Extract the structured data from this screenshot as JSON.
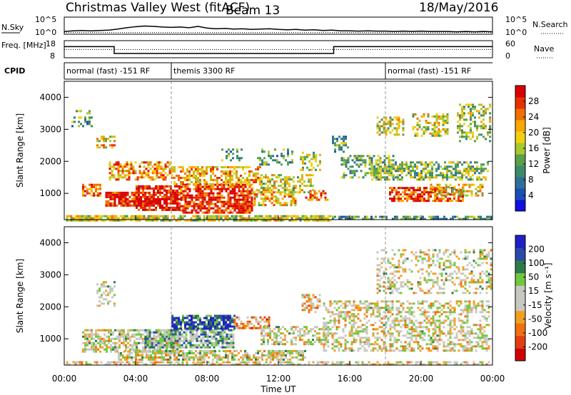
{
  "header": {
    "title": "Christmas Valley West (fitACF)",
    "beam": "Beam 13",
    "date": "18/May/2016"
  },
  "chart_data": [
    {
      "type": "line",
      "panel": "noise",
      "series": [
        {
          "name": "N.Sky",
          "style": "solid",
          "x_hours": [
            0,
            0.5,
            1,
            1.5,
            2,
            2.5,
            3,
            3.5,
            4,
            4.5,
            5,
            5.5,
            6,
            6.5,
            7,
            7.5,
            8,
            8.5,
            9,
            9.5,
            10,
            10.5,
            11,
            11.5,
            12,
            12.5,
            13,
            13.5,
            14,
            14.5,
            15,
            15.5,
            16,
            16.5,
            17,
            17.5,
            18,
            18.5,
            19,
            19.5,
            20,
            20.5,
            21,
            21.5,
            22,
            22.5,
            23,
            23.5,
            24
          ],
          "values": [
            0.8,
            1.0,
            1.1,
            1.0,
            1.1,
            1.2,
            1.5,
            1.9,
            2.2,
            2.4,
            2.3,
            2.1,
            2.0,
            2.1,
            1.9,
            2.3,
            1.8,
            1.6,
            1.7,
            1.5,
            1.6,
            1.4,
            1.5,
            1.6,
            1.4,
            1.3,
            1.4,
            1.2,
            1.3,
            1.1,
            1.2,
            1.0,
            1.0,
            0.9,
            1.0,
            0.9,
            0.9,
            0.8,
            0.9,
            0.8,
            0.9,
            0.8,
            0.8,
            0.8,
            0.7,
            0.8,
            0.7,
            0.8,
            0.7
          ]
        },
        {
          "name": "N.Search",
          "style": "dotted",
          "x_hours": [
            0,
            24
          ],
          "values": [
            0.5,
            0.5
          ]
        }
      ],
      "ylabel_left": "N.Sky",
      "ylabel_right": "N.Search",
      "yticks_left": [
        "10^5",
        "10^0"
      ],
      "yticks_right": [
        "10^5",
        "10^0"
      ],
      "ylim": [
        0,
        5
      ]
    },
    {
      "type": "line",
      "panel": "frequency",
      "series": [
        {
          "name": "Freq",
          "style": "solid",
          "x_hours": [
            0,
            2.8,
            2.8,
            15.1,
            15.1,
            24
          ],
          "values": [
            14.5,
            14.5,
            10.5,
            10.5,
            14.5,
            14.5
          ]
        },
        {
          "name": "Nave",
          "style": "dotted",
          "x_hours": [
            0,
            24
          ],
          "values": [
            12.8,
            12.8
          ]
        }
      ],
      "ylabel_left": "Freq. [MHz]",
      "ylabel_right": "Nave",
      "yticks_left": [
        "18",
        "8"
      ],
      "yticks_right": [
        "60",
        "0"
      ],
      "ylim": [
        8,
        18
      ]
    },
    {
      "type": "table",
      "panel": "cpid",
      "label": "CPID",
      "segments": [
        {
          "text": "normal (fast) -151 RF",
          "start_hour": 0,
          "end_hour": 6
        },
        {
          "text": "themis 3300 RF",
          "start_hour": 6,
          "end_hour": 18
        },
        {
          "text": "normal (fast) -151 RF",
          "start_hour": 18,
          "end_hour": 24
        }
      ]
    },
    {
      "type": "heatmap",
      "panel": "power",
      "ylabel": "Slant Range [km]",
      "ylim": [
        180,
        4500
      ],
      "yticks": [
        1000,
        2000,
        3000,
        4000
      ],
      "xlim": [
        0,
        24
      ],
      "colorbar": {
        "label": "Power [dB]",
        "ticks": [
          4,
          8,
          12,
          16,
          20,
          24,
          28
        ],
        "range": [
          0,
          30
        ]
      },
      "regions": [
        {
          "t0": 0.1,
          "t1": 14.9,
          "r0": 180,
          "r1": 320,
          "level": 0.55,
          "density": 0.8
        },
        {
          "t0": 15.0,
          "t1": 23.9,
          "r0": 180,
          "r1": 300,
          "level": 0.35,
          "density": 0.7
        },
        {
          "t0": 2.3,
          "t1": 4.0,
          "r0": 600,
          "r1": 1050,
          "level": 0.92,
          "density": 0.85
        },
        {
          "t0": 4.0,
          "t1": 6.5,
          "r0": 450,
          "r1": 1250,
          "level": 0.95,
          "density": 0.8
        },
        {
          "t0": 6.5,
          "t1": 10.5,
          "r0": 420,
          "r1": 1300,
          "level": 0.9,
          "density": 0.75
        },
        {
          "t0": 10.5,
          "t1": 13.0,
          "r0": 600,
          "r1": 1200,
          "level": 0.65,
          "density": 0.55
        },
        {
          "t0": 13.5,
          "t1": 14.8,
          "r0": 800,
          "r1": 1100,
          "level": 0.85,
          "density": 0.6
        },
        {
          "t0": 2.5,
          "t1": 6.0,
          "r0": 1400,
          "r1": 2000,
          "level": 0.72,
          "density": 0.55
        },
        {
          "t0": 6.0,
          "t1": 11.0,
          "r0": 1300,
          "r1": 1850,
          "level": 0.68,
          "density": 0.55
        },
        {
          "t0": 11.0,
          "t1": 14.0,
          "r0": 1000,
          "r1": 1600,
          "level": 0.55,
          "density": 0.45
        },
        {
          "t0": 1.0,
          "t1": 2.0,
          "r0": 900,
          "r1": 1300,
          "level": 0.8,
          "density": 0.7
        },
        {
          "t0": 0.4,
          "t1": 1.6,
          "r0": 3100,
          "r1": 3600,
          "level": 0.35,
          "density": 0.45
        },
        {
          "t0": 1.8,
          "t1": 2.8,
          "r0": 2400,
          "r1": 2800,
          "level": 0.62,
          "density": 0.55
        },
        {
          "t0": 13.2,
          "t1": 14.3,
          "r0": 1700,
          "r1": 2300,
          "level": 0.5,
          "density": 0.45
        },
        {
          "t0": 15.5,
          "t1": 18.5,
          "r0": 1500,
          "r1": 2200,
          "level": 0.42,
          "density": 0.5
        },
        {
          "t0": 17.2,
          "t1": 23.8,
          "r0": 1400,
          "r1": 2000,
          "level": 0.45,
          "density": 0.55
        },
        {
          "t0": 18.2,
          "t1": 22.3,
          "r0": 750,
          "r1": 1200,
          "level": 0.85,
          "density": 0.7
        },
        {
          "t0": 20.5,
          "t1": 23.5,
          "r0": 900,
          "r1": 1300,
          "level": 0.6,
          "density": 0.5
        },
        {
          "t0": 17.5,
          "t1": 19.0,
          "r0": 2800,
          "r1": 3400,
          "level": 0.55,
          "density": 0.5
        },
        {
          "t0": 19.5,
          "t1": 21.5,
          "r0": 2800,
          "r1": 3500,
          "level": 0.55,
          "density": 0.45
        },
        {
          "t0": 22.0,
          "t1": 23.9,
          "r0": 2600,
          "r1": 3800,
          "level": 0.5,
          "density": 0.45
        },
        {
          "t0": 10.8,
          "t1": 12.8,
          "r0": 1900,
          "r1": 2400,
          "level": 0.35,
          "density": 0.35
        },
        {
          "t0": 15.0,
          "t1": 16.0,
          "r0": 2300,
          "r1": 2800,
          "level": 0.35,
          "density": 0.35
        },
        {
          "t0": 8.8,
          "t1": 10.0,
          "r0": 2000,
          "r1": 2400,
          "level": 0.35,
          "density": 0.3
        }
      ]
    },
    {
      "type": "heatmap",
      "panel": "velocity",
      "ylabel": "Slant Range [km]",
      "ylim": [
        180,
        4500
      ],
      "yticks": [
        1000,
        2000,
        3000,
        4000
      ],
      "xlim": [
        0,
        24
      ],
      "xticks": [
        "00:00",
        "04:00",
        "08:00",
        "12:00",
        "16:00",
        "20:00",
        "00:00"
      ],
      "xlabel": "Time UT",
      "colorbar": {
        "label": "Velocity [m s⁻¹]",
        "ticks": [
          200,
          100,
          50,
          15,
          -15,
          -50,
          -100,
          -200
        ]
      },
      "regions": [
        {
          "t0": 0.1,
          "t1": 23.9,
          "r0": 180,
          "r1": 300,
          "level": 0.55,
          "density": 0.55
        },
        {
          "t0": 1.0,
          "t1": 6.5,
          "r0": 600,
          "r1": 1300,
          "level": 0.5,
          "density": 0.65
        },
        {
          "t0": 4.5,
          "t1": 9.5,
          "r0": 700,
          "r1": 1300,
          "level": 0.35,
          "density": 0.75
        },
        {
          "t0": 6.0,
          "t1": 9.5,
          "r0": 1300,
          "r1": 1750,
          "level": 0.12,
          "density": 0.8
        },
        {
          "t0": 9.5,
          "t1": 11.5,
          "r0": 1300,
          "r1": 1700,
          "level": 0.7,
          "density": 0.6
        },
        {
          "t0": 3.0,
          "t1": 13.5,
          "r0": 350,
          "r1": 650,
          "level": 0.5,
          "density": 0.7
        },
        {
          "t0": 11.0,
          "t1": 14.8,
          "r0": 800,
          "r1": 1400,
          "level": 0.5,
          "density": 0.5
        },
        {
          "t0": 14.5,
          "t1": 23.8,
          "r0": 600,
          "r1": 2200,
          "level": 0.52,
          "density": 0.45
        },
        {
          "t0": 17.5,
          "t1": 23.9,
          "r0": 2400,
          "r1": 3800,
          "level": 0.5,
          "density": 0.35
        },
        {
          "t0": 13.3,
          "t1": 14.3,
          "r0": 1800,
          "r1": 2400,
          "level": 0.6,
          "density": 0.45
        },
        {
          "t0": 1.8,
          "t1": 2.8,
          "r0": 2000,
          "r1": 2800,
          "level": 0.5,
          "density": 0.4
        }
      ]
    }
  ]
}
